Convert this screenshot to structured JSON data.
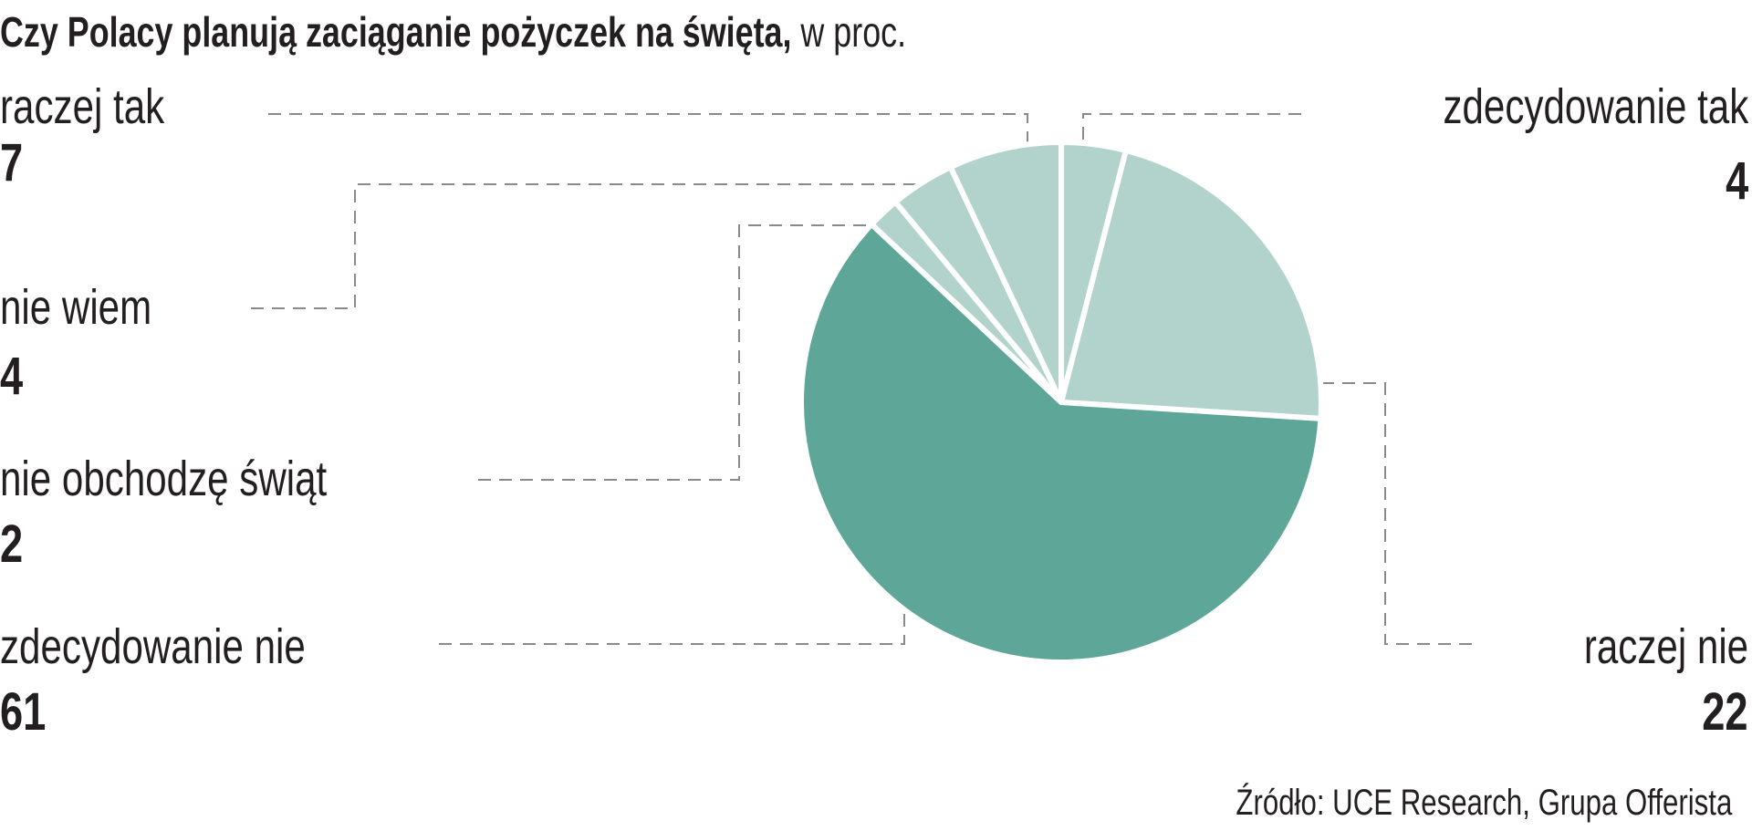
{
  "chart_data": {
    "type": "pie",
    "title": "Czy Polacy planują zaciąganie pożyczek na święta,",
    "unit": "w proc.",
    "source": "Źródło: UCE Research, Grupa Offerista",
    "start": "top, clockwise",
    "slices": [
      {
        "label": "zdecydowanie tak",
        "value": 4,
        "color": "#b2d3cc"
      },
      {
        "label": "raczej nie",
        "value": 22,
        "color": "#b2d3cc"
      },
      {
        "label": "zdecydowanie nie",
        "value": 61,
        "color": "#5ea698"
      },
      {
        "label": "nie obchodzę świąt",
        "value": 2,
        "color": "#b2d3cc"
      },
      {
        "label": "nie wiem",
        "value": 4,
        "color": "#b2d3cc"
      },
      {
        "label": "raczej tak",
        "value": 7,
        "color": "#b2d3cc"
      }
    ]
  }
}
